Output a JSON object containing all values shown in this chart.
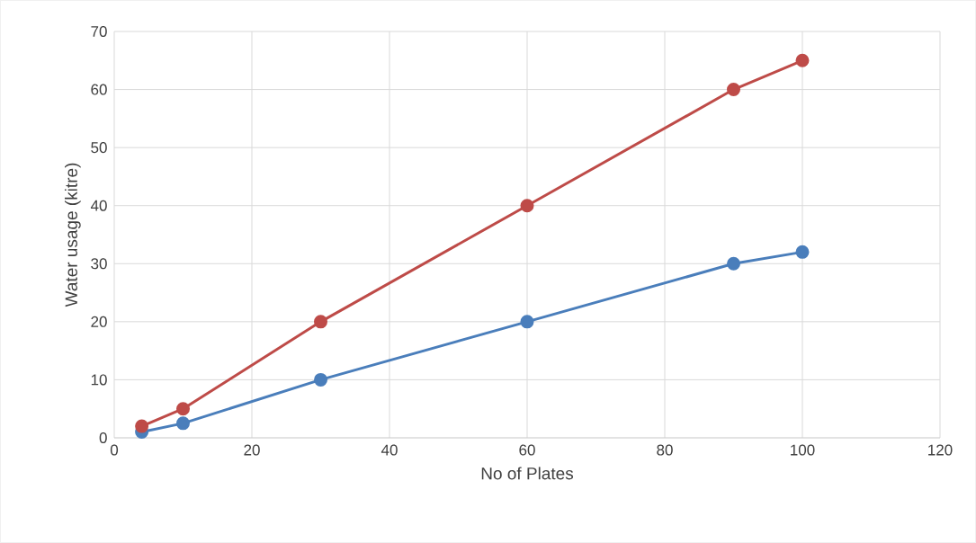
{
  "chart_data": {
    "type": "line",
    "xlabel": "No of Plates",
    "ylabel": "Water usage (kitre)",
    "x": [
      4,
      10,
      30,
      60,
      90,
      100
    ],
    "series": [
      {
        "color": "#4a7ebb",
        "values": [
          1,
          2.5,
          10,
          20,
          30,
          32
        ]
      },
      {
        "color": "#be4b48",
        "values": [
          2,
          5,
          20,
          40,
          60,
          65
        ]
      }
    ],
    "xlim": [
      0,
      120
    ],
    "xticks": [
      0,
      20,
      40,
      60,
      80,
      100,
      120
    ],
    "ylim": [
      0,
      70
    ],
    "yticks": [
      0,
      10,
      20,
      30,
      40,
      50,
      60,
      70
    ],
    "grid": true,
    "marker": "circle",
    "line_style": "solid"
  }
}
